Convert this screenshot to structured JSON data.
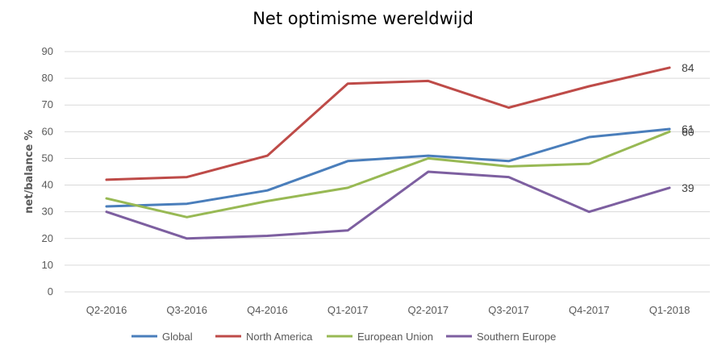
{
  "chart_data": {
    "type": "line",
    "title": "Net optimisme wereldwijd",
    "xlabel": "",
    "ylabel": "net/balance %",
    "ylim": [
      0,
      90
    ],
    "yticks": [
      "0",
      "10",
      "20",
      "30",
      "40",
      "50",
      "60",
      "70",
      "80",
      "90"
    ],
    "grid": true,
    "legend_position": "bottom",
    "categories": [
      "Q2-2016",
      "Q3-2016",
      "Q4-2016",
      "Q1-2017",
      "Q2-2017",
      "Q3-2017",
      "Q4-2017",
      "Q1-2018"
    ],
    "series": [
      {
        "name": "Global",
        "color": "#4a7ebb",
        "values": [
          32,
          33,
          38,
          49,
          51,
          49,
          58,
          61
        ],
        "end_label": "61"
      },
      {
        "name": "North America",
        "color": "#be4b48",
        "values": [
          42,
          43,
          51,
          78,
          79,
          69,
          77,
          84
        ],
        "end_label": "84"
      },
      {
        "name": "European Union",
        "color": "#98b954",
        "values": [
          35,
          28,
          34,
          39,
          50,
          47,
          48,
          60
        ],
        "end_label": "60"
      },
      {
        "name": "Southern Europe",
        "color": "#7d5fa0",
        "values": [
          30,
          20,
          21,
          23,
          45,
          43,
          30,
          39
        ],
        "end_label": "39"
      }
    ]
  }
}
